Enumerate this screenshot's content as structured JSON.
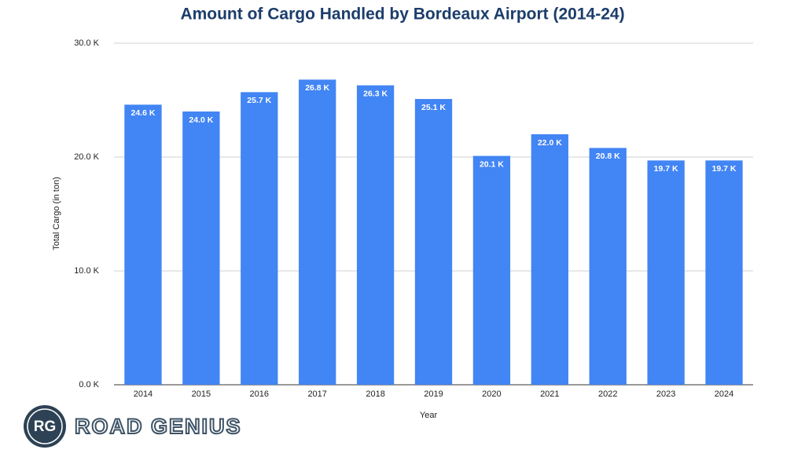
{
  "chart_data": {
    "type": "bar",
    "title": "Amount of Cargo Handled by Bordeaux Airport (2014-24)",
    "x_label": "Year",
    "y_label": "Total Cargo (in ton)",
    "categories": [
      "2014",
      "2015",
      "2016",
      "2017",
      "2018",
      "2019",
      "2020",
      "2021",
      "2022",
      "2023",
      "2024"
    ],
    "values": [
      24600,
      24000,
      25700,
      26800,
      26300,
      25100,
      20100,
      22000,
      20800,
      19700,
      19700
    ],
    "value_labels": [
      "24.6 K",
      "24.0 K",
      "25.7 K",
      "26.8 K",
      "26.3 K",
      "25.1 K",
      "20.1 K",
      "22.0 K",
      "20.8 K",
      "19.7 K",
      "19.7 K"
    ],
    "color": "#4285f4",
    "ylim": [
      0,
      30000
    ],
    "yticks": [
      {
        "value": 0,
        "label": "0.0 K"
      },
      {
        "value": 10000,
        "label": "10.0 K"
      },
      {
        "value": 20000,
        "label": "20.0 K"
      },
      {
        "value": 30000,
        "label": "30.0 K"
      }
    ],
    "grid": true
  },
  "logo": {
    "initials": "RG",
    "text": "ROAD GENIUS"
  }
}
